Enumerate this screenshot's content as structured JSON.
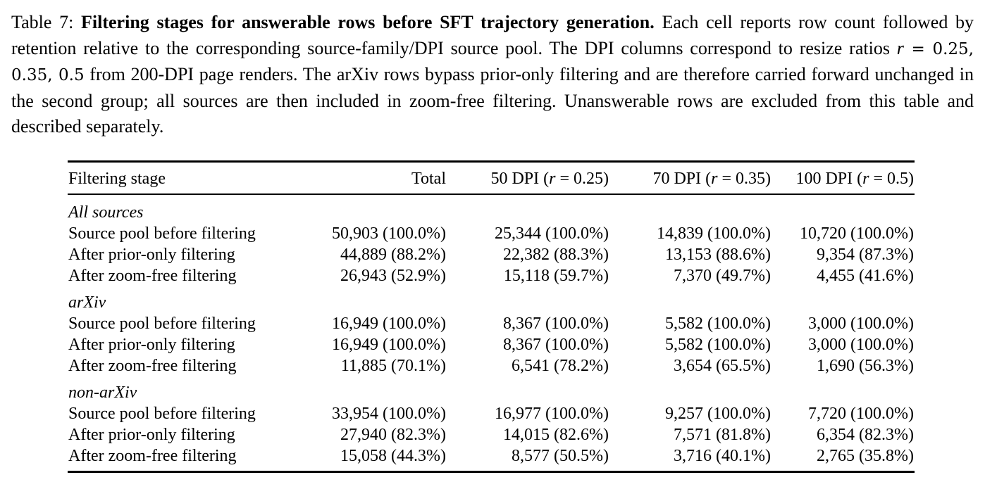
{
  "caption": {
    "label": "Table 7:",
    "title": "Filtering stages for answerable rows before SFT trajectory generation.",
    "text_1": " Each cell reports row count followed by retention relative to the corresponding source-family/DPI source pool. The DPI columns correspond to resize ratios ",
    "math_var": "r",
    "math_eq": " = 0.25, 0.35, 0.5",
    "text_2": " from 200-DPI page renders. The arXiv rows bypass prior-only filtering and are therefore carried forward unchanged in the second group; all sources are then included in zoom-free filtering. Unanswerable rows are excluded from this table and described separately."
  },
  "table": {
    "headers": {
      "stage": "Filtering stage",
      "total": "Total",
      "dpi50_prefix": "50 DPI (",
      "dpi50_var": "r",
      "dpi50_suffix": " = 0.25)",
      "dpi70_prefix": "70 DPI (",
      "dpi70_var": "r",
      "dpi70_suffix": " = 0.35)",
      "dpi100_prefix": "100 DPI (",
      "dpi100_var": "r",
      "dpi100_suffix": " = 0.5)"
    },
    "groups": [
      {
        "name": "All sources",
        "rows": [
          {
            "stage": "Source pool before filtering",
            "total": "50,903 (100.0%)",
            "dpi50": "25,344 (100.0%)",
            "dpi70": "14,839 (100.0%)",
            "dpi100": "10,720 (100.0%)"
          },
          {
            "stage": "After prior-only filtering",
            "total": "44,889 (88.2%)",
            "dpi50": "22,382 (88.3%)",
            "dpi70": "13,153 (88.6%)",
            "dpi100": "9,354 (87.3%)"
          },
          {
            "stage": "After zoom-free filtering",
            "total": "26,943 (52.9%)",
            "dpi50": "15,118 (59.7%)",
            "dpi70": "7,370 (49.7%)",
            "dpi100": "4,455 (41.6%)"
          }
        ]
      },
      {
        "name": "arXiv",
        "rows": [
          {
            "stage": "Source pool before filtering",
            "total": "16,949 (100.0%)",
            "dpi50": "8,367 (100.0%)",
            "dpi70": "5,582 (100.0%)",
            "dpi100": "3,000 (100.0%)"
          },
          {
            "stage": "After prior-only filtering",
            "total": "16,949 (100.0%)",
            "dpi50": "8,367 (100.0%)",
            "dpi70": "5,582 (100.0%)",
            "dpi100": "3,000 (100.0%)"
          },
          {
            "stage": "After zoom-free filtering",
            "total": "11,885 (70.1%)",
            "dpi50": "6,541 (78.2%)",
            "dpi70": "3,654 (65.5%)",
            "dpi100": "1,690 (56.3%)"
          }
        ]
      },
      {
        "name": "non-arXiv",
        "rows": [
          {
            "stage": "Source pool before filtering",
            "total": "33,954 (100.0%)",
            "dpi50": "16,977 (100.0%)",
            "dpi70": "9,257 (100.0%)",
            "dpi100": "7,720 (100.0%)"
          },
          {
            "stage": "After prior-only filtering",
            "total": "27,940 (82.3%)",
            "dpi50": "14,015 (82.6%)",
            "dpi70": "7,571 (81.8%)",
            "dpi100": "6,354 (82.3%)"
          },
          {
            "stage": "After zoom-free filtering",
            "total": "15,058 (44.3%)",
            "dpi50": "8,577 (50.5%)",
            "dpi70": "3,716 (40.1%)",
            "dpi100": "2,765 (35.8%)"
          }
        ]
      }
    ]
  }
}
